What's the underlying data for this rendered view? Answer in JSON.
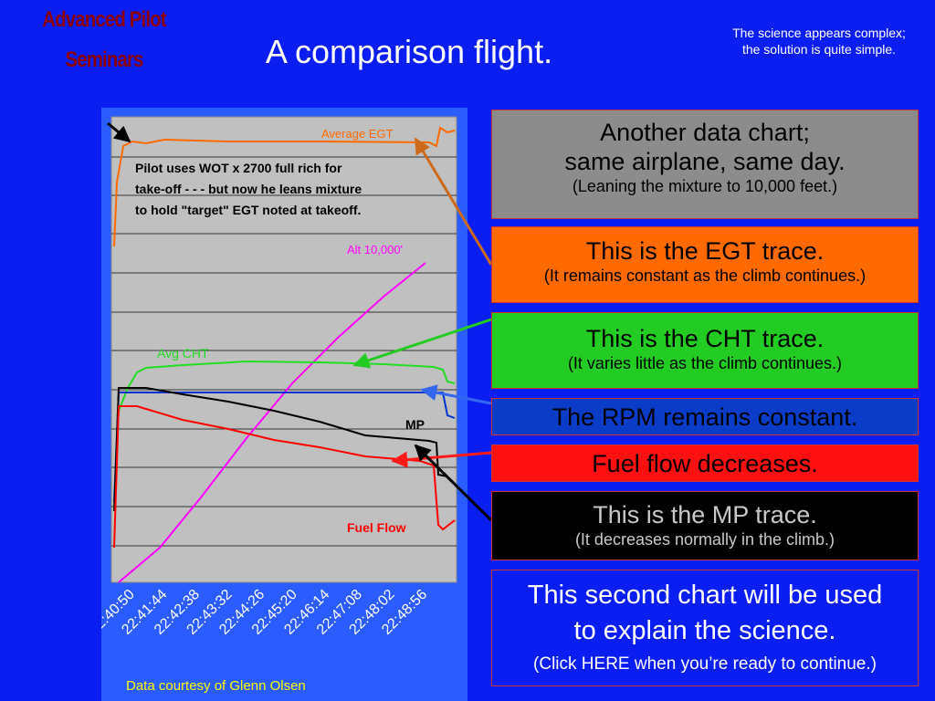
{
  "header": {
    "logo": [
      "Advanced Pilot",
      "Seminars"
    ],
    "title": "A comparison flight.",
    "tagline": [
      "The science appears complex;",
      "the solution is quite simple."
    ]
  },
  "chart_panel": {
    "annotation": [
      "Pilot uses WOT x 2700 full rich for",
      "take-off - - - but now  he leans mixture",
      "to hold \"target\" EGT noted at takeoff."
    ],
    "trace_labels": {
      "egt": "Average EGT",
      "alt": "Alt 10,000'",
      "cht": "Avg CHT",
      "mp": "MP",
      "ff": "Fuel Flow"
    },
    "time_labels": [
      "22:40:50",
      "22:41:44",
      "22:42:38",
      "22:43:32",
      "22:44:26",
      "22:45:20",
      "22:46:14",
      "22:47:08",
      "22:48:02",
      "22:48:56"
    ],
    "credit": "Data courtesy of Glenn Olsen"
  },
  "callouts": [
    {
      "lines": [
        "Another data chart;",
        "same airplane, same day.",
        "(Leaning the mixture to 10,000 feet.)"
      ]
    },
    {
      "lines": [
        "This is the EGT trace.",
        "(It remains constant as the climb continues.)"
      ]
    },
    {
      "lines": [
        "This is the CHT trace.",
        "(It varies little as the climb continues.)"
      ]
    },
    {
      "lines": [
        "The RPM remains constant."
      ]
    },
    {
      "lines": [
        "Fuel flow decreases."
      ]
    },
    {
      "lines": [
        "This is the MP trace.",
        "(It decreases normally in the climb.)"
      ]
    },
    {
      "lines": [
        "This second chart will be used",
        "to explain the science.",
        "(Click HERE when you’re ready to continue.)"
      ]
    }
  ]
}
